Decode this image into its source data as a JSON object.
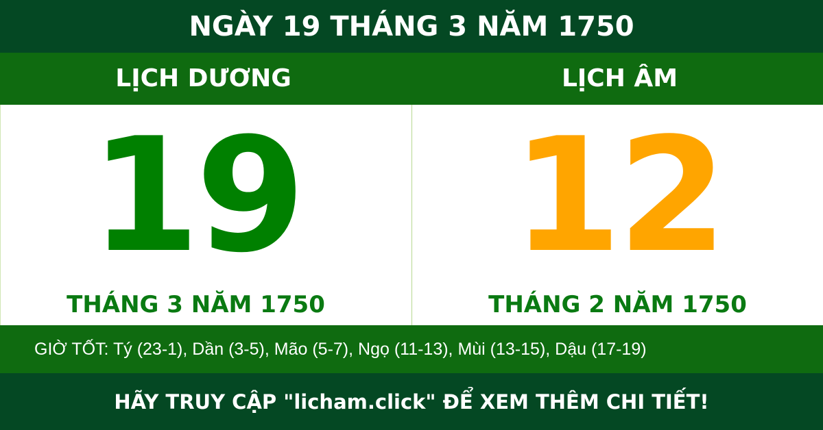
{
  "title": "NGÀY 19 THÁNG 3 NĂM 1750",
  "solar": {
    "label": "LỊCH DƯƠNG",
    "day": "19",
    "month_year": "THÁNG 3 NĂM 1750",
    "color": "#008000"
  },
  "lunar": {
    "label": "LỊCH ÂM",
    "day": "12",
    "month_year": "THÁNG 2 NĂM 1750",
    "color": "#ffa500"
  },
  "good_hours": "GIỜ TỐT: Tý (23-1), Dần (3-5), Mão (5-7), Ngọ (11-13), Mùi (13-15), Dậu (17-19)",
  "footer": "HÃY TRUY CẬP \"licham.click\" ĐỂ XEM THÊM CHI TIẾT!",
  "colors": {
    "dark_green": "#044823",
    "band_green": "#0f6b10"
  }
}
